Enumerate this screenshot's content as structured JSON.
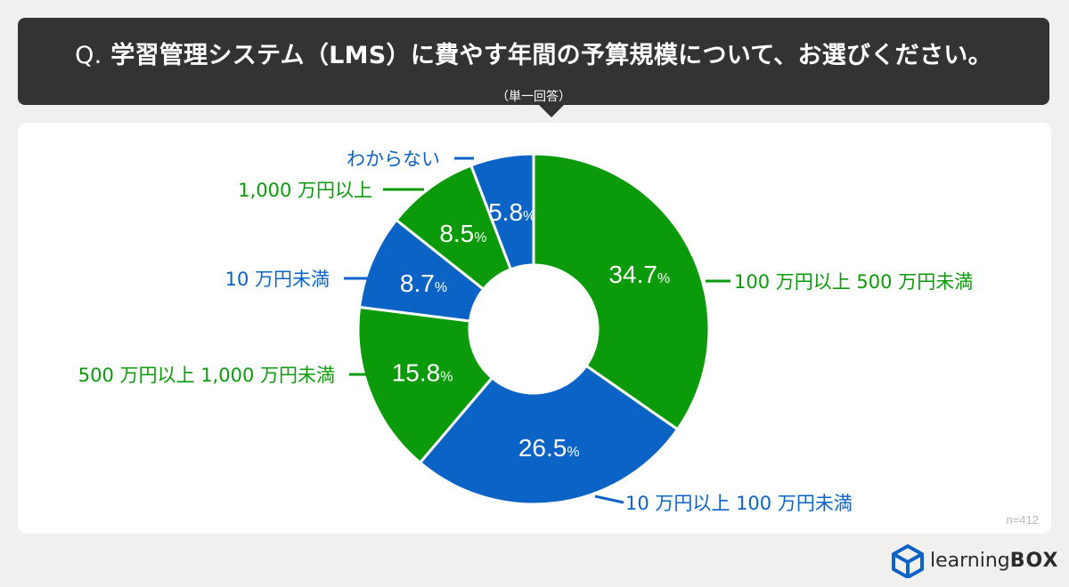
{
  "question": {
    "prefix": "Q.",
    "title": "学習管理システム（LMS）に費やす年間の予算規模について、お選びください。",
    "subtitle": "（単一回答）"
  },
  "sample": "n=412",
  "brand": {
    "name_light": "learning",
    "name_bold": "BOX"
  },
  "colors": {
    "green": "#0a9a0a",
    "blue": "#0b63c6",
    "dark": "#333333"
  },
  "chart_data": {
    "type": "pie",
    "donut": true,
    "title": "学習管理システム（LMS）に費やす年間の予算規模について、お選びください。",
    "slices": [
      {
        "label": "100 万円以上 500 万円未満",
        "value": 34.7,
        "color": "green"
      },
      {
        "label": "10 万円以上 100 万円未満",
        "value": 26.5,
        "color": "blue"
      },
      {
        "label": "500 万円以上 1,000 万円未満",
        "value": 15.8,
        "color": "green"
      },
      {
        "label": "10 万円未満",
        "value": 8.7,
        "color": "blue"
      },
      {
        "label": "1,000 万円以上",
        "value": 8.5,
        "color": "green"
      },
      {
        "label": "わからない",
        "value": 5.8,
        "color": "blue"
      }
    ],
    "value_labels": [
      {
        "num": "34.7",
        "unit": "%"
      },
      {
        "num": "26.5",
        "unit": "%"
      },
      {
        "num": "15.8",
        "unit": "%"
      },
      {
        "num": "8.7",
        "unit": "%"
      },
      {
        "num": "8.5",
        "unit": "%"
      },
      {
        "num": "5.8",
        "unit": "%"
      }
    ]
  }
}
